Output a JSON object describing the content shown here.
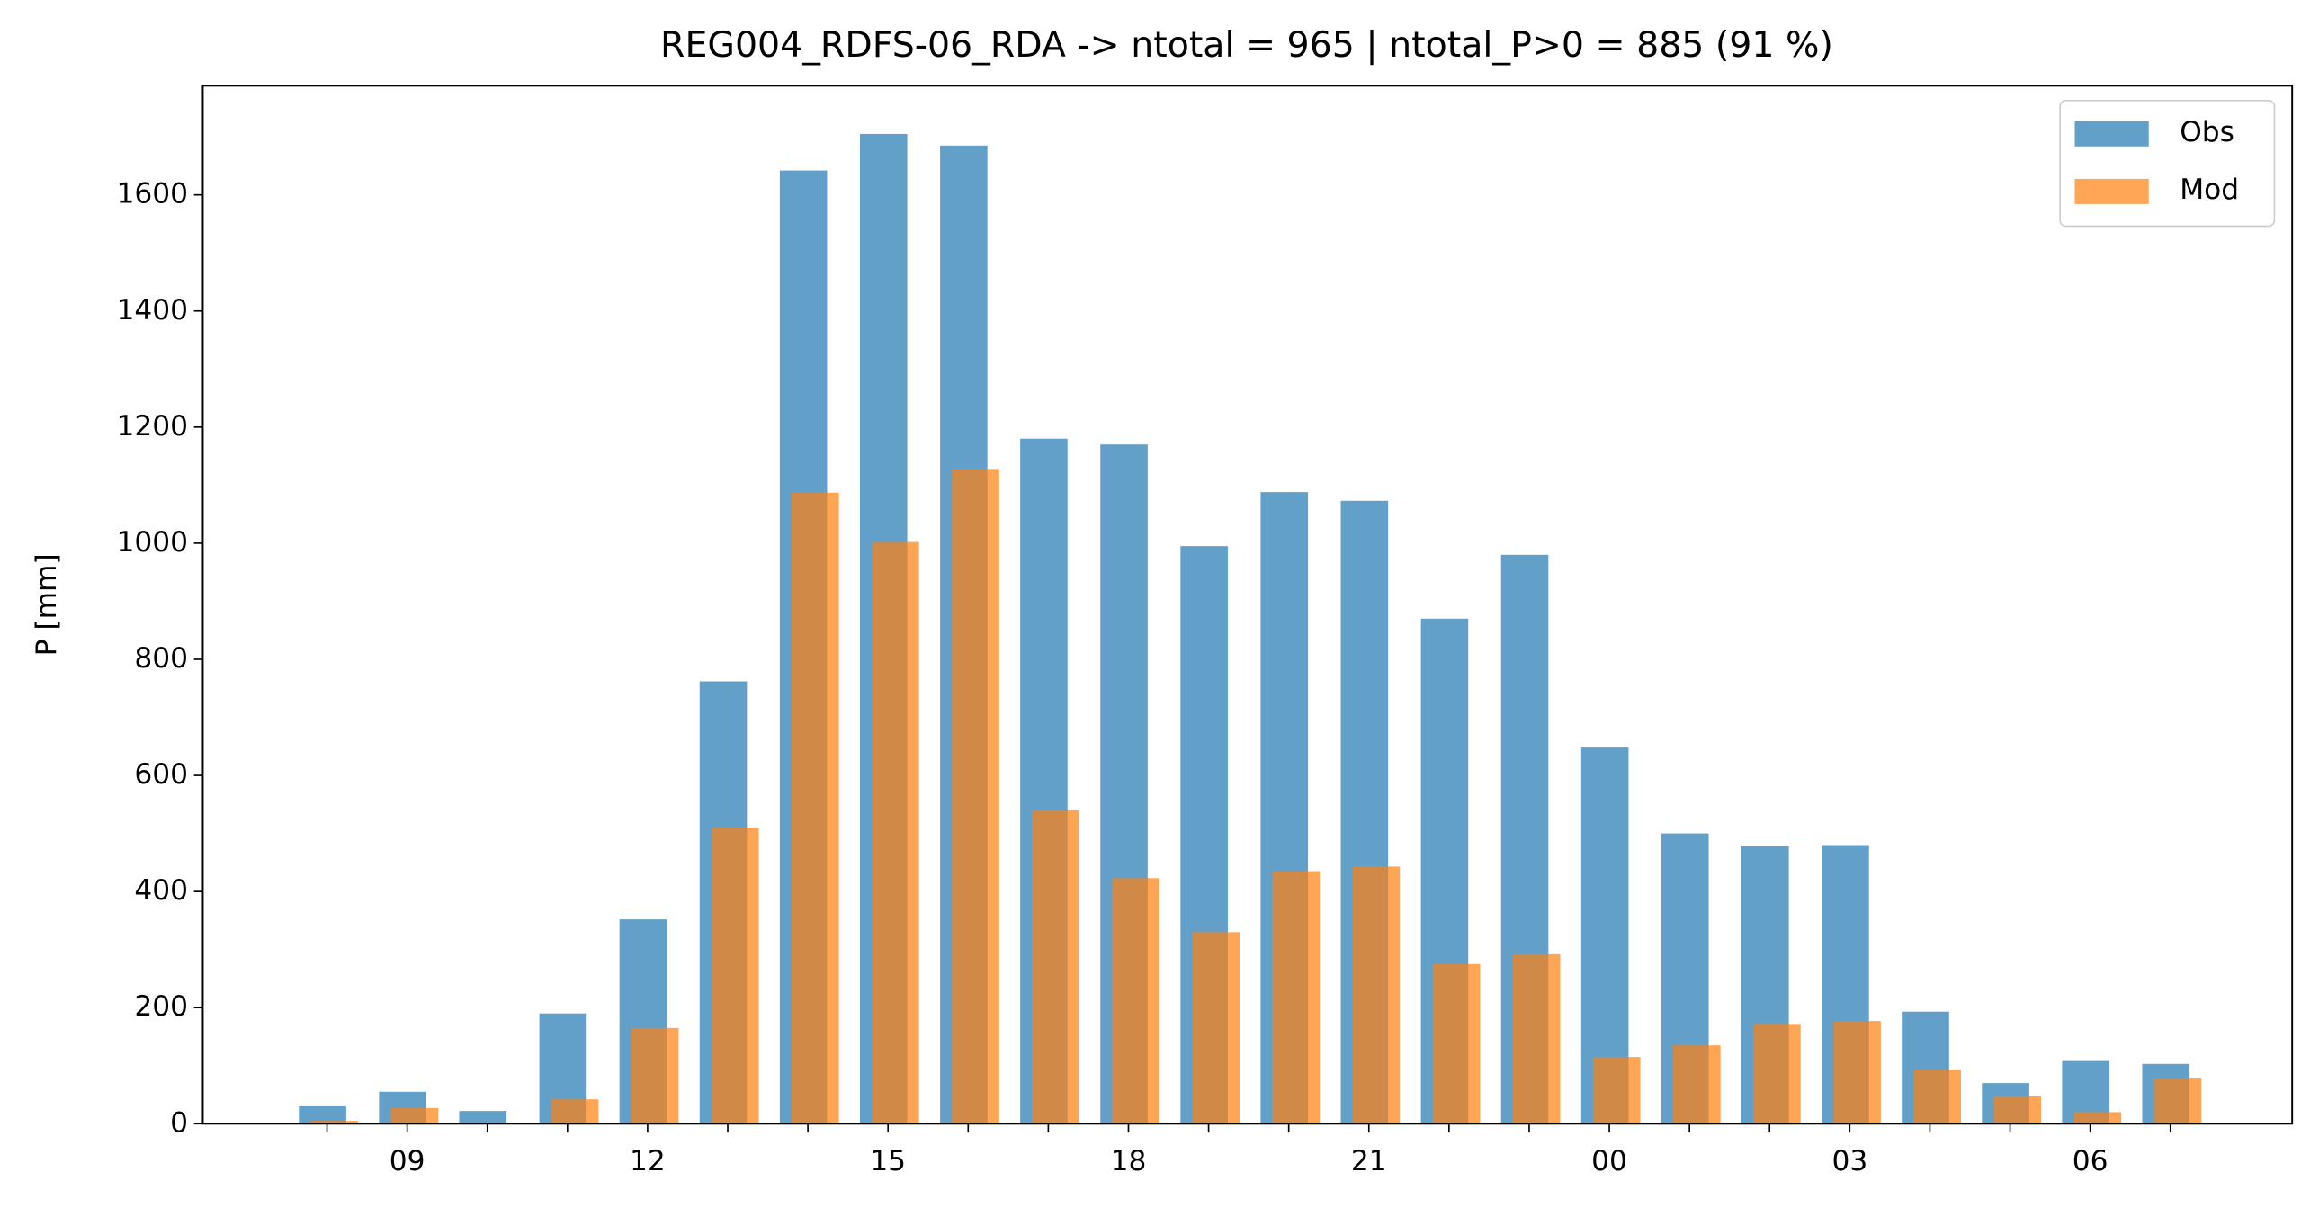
{
  "chart_data": {
    "type": "bar",
    "title": "REG004_RDFS-06_RDA -> ntotal = 965 | ntotal_P>0 = 885 (91 %)",
    "y_label": "P [mm]",
    "categories": [
      null,
      "09",
      null,
      null,
      "12",
      null,
      null,
      "15",
      null,
      null,
      "18",
      null,
      null,
      "21",
      null,
      null,
      "00",
      null,
      null,
      "03",
      null,
      null,
      "06",
      null
    ],
    "series": [
      {
        "name": "Obs",
        "color": "#1f77b4",
        "values": [
          30,
          55,
          22,
          190,
          352,
          762,
          1642,
          1705,
          1685,
          1180,
          1170,
          995,
          1088,
          1073,
          870,
          980,
          648,
          500,
          478,
          480,
          193,
          70,
          108,
          103
        ]
      },
      {
        "name": "Mod",
        "color": "#ff7f0e",
        "values": [
          5,
          27,
          0,
          42,
          165,
          510,
          1087,
          1002,
          1128,
          540,
          423,
          330,
          435,
          443,
          275,
          292,
          115,
          135,
          172,
          177,
          92,
          47,
          20,
          78
        ]
      }
    ],
    "ylim": [
      0,
      1788
    ],
    "yticks": [
      0,
      200,
      400,
      600,
      800,
      1000,
      1200,
      1400,
      1600
    ],
    "legend": "upper right"
  }
}
